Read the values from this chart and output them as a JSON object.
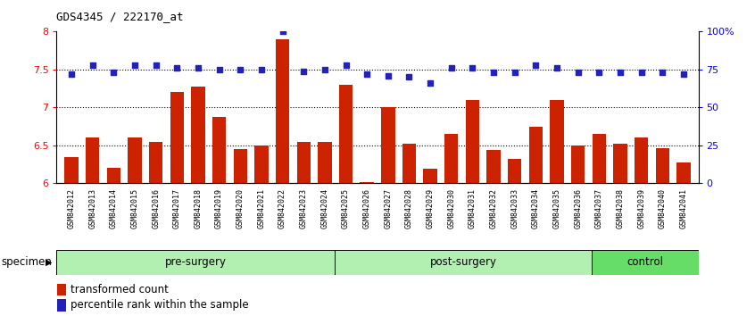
{
  "title": "GDS4345 / 222170_at",
  "samples": [
    "GSM842012",
    "GSM842013",
    "GSM842014",
    "GSM842015",
    "GSM842016",
    "GSM842017",
    "GSM842018",
    "GSM842019",
    "GSM842020",
    "GSM842021",
    "GSM842022",
    "GSM842023",
    "GSM842024",
    "GSM842025",
    "GSM842026",
    "GSM842027",
    "GSM842028",
    "GSM842029",
    "GSM842030",
    "GSM842031",
    "GSM842032",
    "GSM842033",
    "GSM842034",
    "GSM842035",
    "GSM842036",
    "GSM842037",
    "GSM842038",
    "GSM842039",
    "GSM842040",
    "GSM842041"
  ],
  "transformed_count": [
    6.35,
    6.6,
    6.2,
    6.6,
    6.55,
    7.2,
    7.28,
    6.88,
    6.45,
    6.5,
    7.9,
    6.55,
    6.55,
    7.3,
    6.02,
    7.0,
    6.52,
    6.19,
    6.65,
    7.1,
    6.44,
    6.32,
    6.75,
    7.1,
    6.5,
    6.65,
    6.52,
    6.6,
    6.46,
    6.28
  ],
  "percentile_rank": [
    72,
    78,
    73,
    78,
    78,
    76,
    76,
    75,
    75,
    75,
    100,
    74,
    75,
    78,
    72,
    71,
    70,
    66,
    76,
    76,
    73,
    73,
    78,
    76,
    73,
    73,
    73,
    73,
    73,
    72
  ],
  "bar_color": "#CC2200",
  "dot_color": "#2222BB",
  "ylim_left": [
    6.0,
    8.0
  ],
  "ylim_right": [
    0,
    100
  ],
  "yticks_left": [
    6.0,
    6.5,
    7.0,
    7.5,
    8.0
  ],
  "ytick_labels_left": [
    "6",
    "6.5",
    "7",
    "7.5",
    "8"
  ],
  "yticks_right": [
    0,
    25,
    50,
    75,
    100
  ],
  "ytick_labels_right": [
    "0",
    "25",
    "50",
    "75",
    "100%"
  ],
  "hlines": [
    6.5,
    7.0,
    7.5
  ],
  "group_data": [
    {
      "label": "pre-surgery",
      "start": 0,
      "end": 13,
      "color": "#b2f0b2"
    },
    {
      "label": "post-surgery",
      "start": 13,
      "end": 25,
      "color": "#b2f0b2"
    },
    {
      "label": "control",
      "start": 25,
      "end": 30,
      "color": "#66dd66"
    }
  ],
  "xlabel_specimen": "specimen",
  "legend_red": "transformed count",
  "legend_blue": "percentile rank within the sample"
}
